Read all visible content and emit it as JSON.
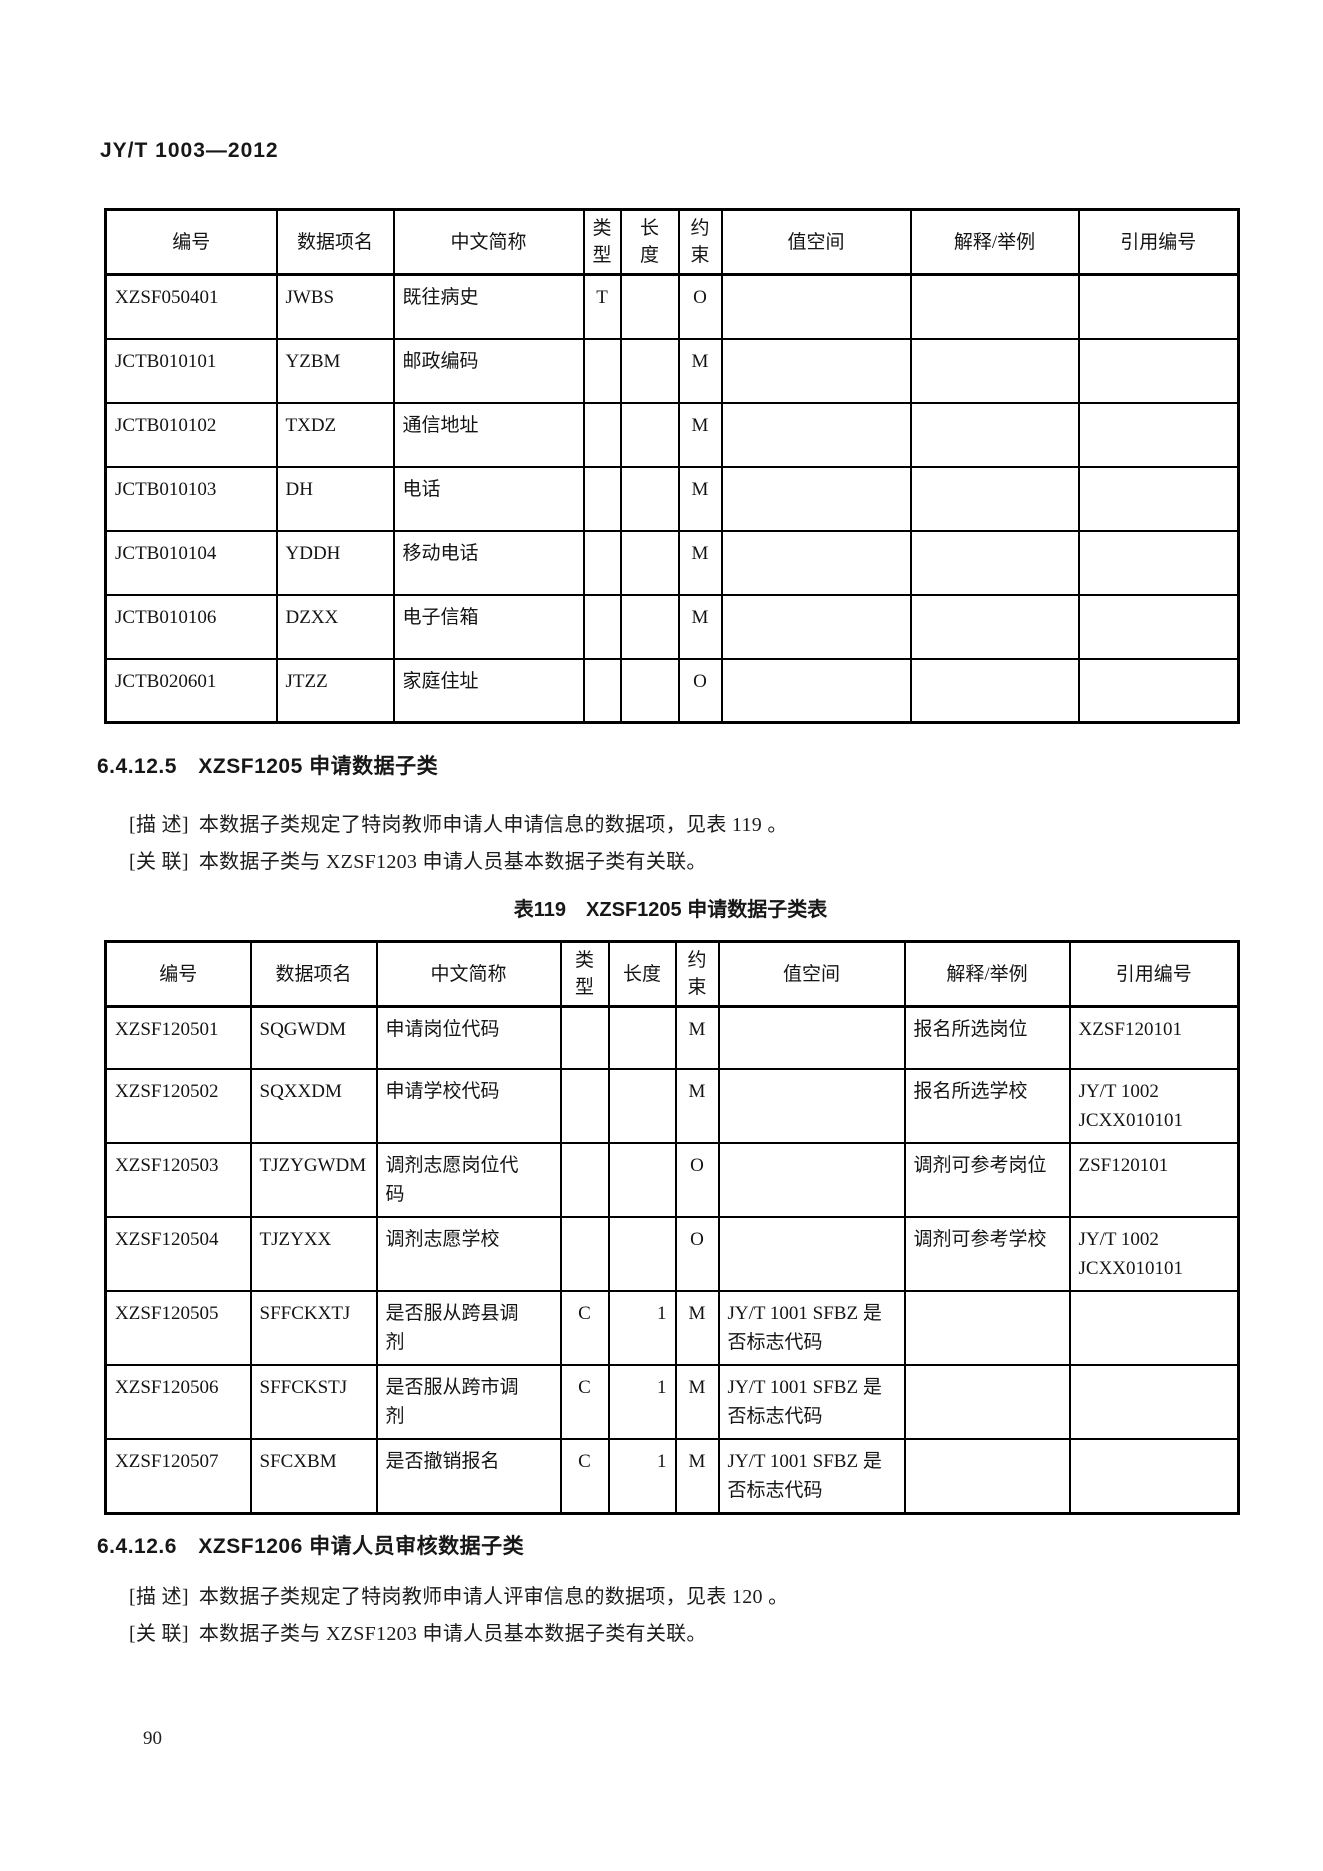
{
  "header": {
    "doc_code": "JY/T 1003—2012"
  },
  "table1": {
    "headers": [
      "编号",
      "数据项名",
      "中文简称",
      "类\n型",
      "长\n度",
      "约\n束",
      "值空间",
      "解释/举例",
      "引用编号"
    ],
    "rows": [
      [
        "XZSF050401",
        "JWBS",
        "既往病史",
        "T",
        "",
        "O",
        "",
        "",
        ""
      ],
      [
        "JCTB010101",
        "YZBM",
        "邮政编码",
        "",
        "",
        "M",
        "",
        "",
        ""
      ],
      [
        "JCTB010102",
        "TXDZ",
        "通信地址",
        "",
        "",
        "M",
        "",
        "",
        ""
      ],
      [
        "JCTB010103",
        "DH",
        "电话",
        "",
        "",
        "M",
        "",
        "",
        ""
      ],
      [
        "JCTB010104",
        "YDDH",
        "移动电话",
        "",
        "",
        "M",
        "",
        "",
        ""
      ],
      [
        "JCTB010106",
        "DZXX",
        "电子信箱",
        "",
        "",
        "M",
        "",
        "",
        ""
      ],
      [
        "JCTB020601",
        "JTZZ",
        "家庭住址",
        "",
        "",
        "O",
        "",
        "",
        ""
      ]
    ]
  },
  "section1": {
    "heading": "6.4.12.5　XZSF1205 申请数据子类",
    "desc_label": "[描 述]",
    "desc_text": "本数据子类规定了特岗教师申请人申请信息的数据项，见表 119 。",
    "rel_label": "[关 联]",
    "rel_text": "本数据子类与 XZSF1203 申请人员基本数据子类有关联。"
  },
  "table2": {
    "title": "表119　XZSF1205 申请数据子类表",
    "headers": [
      "编号",
      "数据项名",
      "中文简称",
      "类\n型",
      "长度",
      "约\n束",
      "值空间",
      "解释/举例",
      "引用编号"
    ],
    "rows": [
      [
        "XZSF120501",
        "SQGWDM",
        "申请岗位代码",
        "",
        "",
        "M",
        "",
        "报名所选岗位",
        "XZSF120101"
      ],
      [
        "XZSF120502",
        "SQXXDM",
        "申请学校代码",
        "",
        "",
        "M",
        "",
        "报名所选学校",
        "JY/T 1002\nJCXX010101"
      ],
      [
        "XZSF120503",
        "TJZYGWDM",
        "调剂志愿岗位代\n码",
        "",
        "",
        "O",
        "",
        "调剂可参考岗位",
        "ZSF120101"
      ],
      [
        "XZSF120504",
        "TJZYXX",
        "调剂志愿学校",
        "",
        "",
        "O",
        "",
        "调剂可参考学校",
        "JY/T 1002\nJCXX010101"
      ],
      [
        "XZSF120505",
        "SFFCKXTJ",
        "是否服从跨县调\n剂",
        "C",
        "1",
        "M",
        "JY/T 1001 SFBZ 是\n否标志代码",
        "",
        ""
      ],
      [
        "XZSF120506",
        "SFFCKSTJ",
        "是否服从跨市调\n剂",
        "C",
        "1",
        "M",
        "JY/T 1001 SFBZ 是\n否标志代码",
        "",
        ""
      ],
      [
        "XZSF120507",
        "SFCXBM",
        "是否撤销报名",
        "C",
        "1",
        "M",
        "JY/T 1001 SFBZ 是\n否标志代码",
        "",
        ""
      ]
    ]
  },
  "section2": {
    "heading": "6.4.12.6　XZSF1206 申请人员审核数据子类",
    "desc_label": "[描 述]",
    "desc_text": "本数据子类规定了特岗教师申请人评审信息的数据项，见表 120 。",
    "rel_label": "[关 联]",
    "rel_text": "本数据子类与 XZSF1203 申请人员基本数据子类有关联。"
  },
  "footer": {
    "page_number": "90"
  }
}
